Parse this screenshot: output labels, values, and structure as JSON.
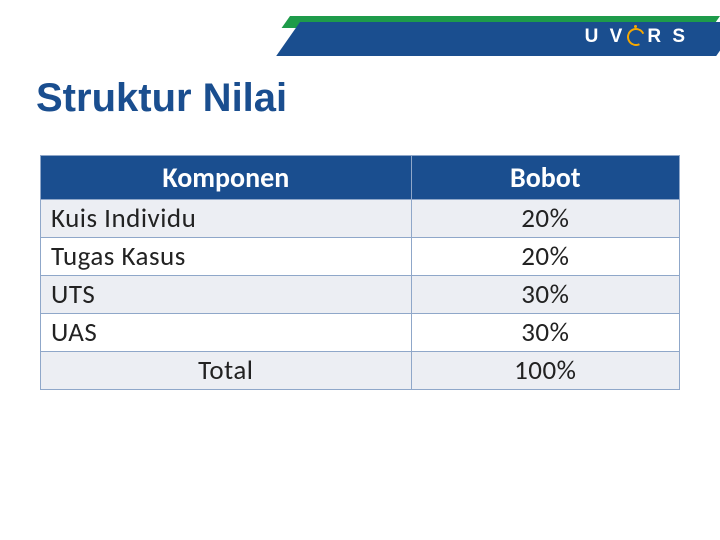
{
  "header": {
    "logo_text_left": "U V",
    "logo_text_right": "R S",
    "band_blue_color": "#1a4e8f",
    "band_green_color": "#1e9b4a",
    "logo_accent_color": "#f7a800"
  },
  "page": {
    "title": "Struktur Nilai"
  },
  "table": {
    "columns": [
      "Komponen",
      "Bobot"
    ],
    "rows": [
      {
        "component": "Kuis Individu",
        "weight": "20%"
      },
      {
        "component": "Tugas Kasus",
        "weight": "20%"
      },
      {
        "component": "UTS",
        "weight": "30%"
      },
      {
        "component": "UAS",
        "weight": "30%"
      }
    ],
    "total_label": "Total",
    "total_value": "100%",
    "header_bg": "#1a4e8f",
    "header_fg": "#ffffff",
    "border_color": "#8fa7c9",
    "alt_row_bg": "#eceef3",
    "font_size_pt": 20
  }
}
